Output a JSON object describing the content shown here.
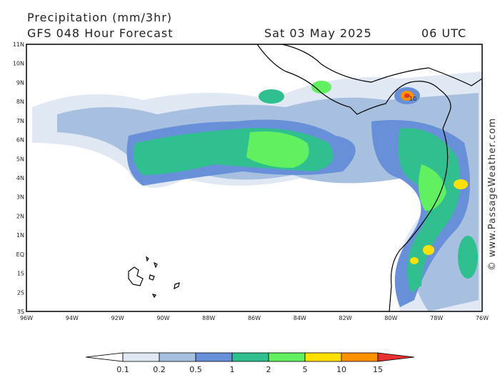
{
  "header": {
    "title": "Precipitation (mm/3hr)",
    "subtitle": "GFS 048 Hour Forecast",
    "date": "Sat 03 May 2025",
    "time": "06 UTC"
  },
  "map": {
    "lat_labels": [
      "11N",
      "10N",
      "9N",
      "8N",
      "7N",
      "6N",
      "5N",
      "4N",
      "3N",
      "2N",
      "1N",
      "EQ",
      "1S",
      "2S",
      "3S"
    ],
    "lon_labels": [
      "96W",
      "94W",
      "92W",
      "90W",
      "88W",
      "86W",
      "84W",
      "82W",
      "80W",
      "78W",
      "76W"
    ],
    "contour_label": "10"
  },
  "legend": {
    "labels": [
      "0.1",
      "0.2",
      "0.5",
      "1",
      "2",
      "5",
      "10",
      "15"
    ]
  },
  "credit": "© www.PassageWeather.com"
}
